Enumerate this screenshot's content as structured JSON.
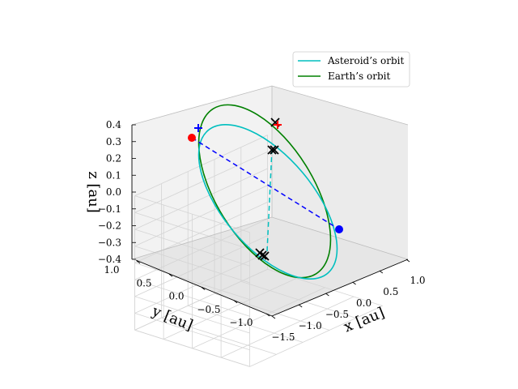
{
  "chart_data": {
    "type": "line",
    "projection": "3d",
    "xlabel": "x [au]",
    "ylabel": "y [au]",
    "zlabel": "z [au]",
    "xlim": [
      -1.5,
      1.0
    ],
    "ylim": [
      -1.0,
      1.0
    ],
    "zlim": [
      -0.4,
      0.4
    ],
    "xticks": [
      "−1.5",
      "−1.0",
      "−0.5",
      "0.0",
      "0.5",
      "1.0"
    ],
    "yticks": [
      "−1.0",
      "−0.5",
      "0.0",
      "0.5",
      "1.0"
    ],
    "zticks": [
      "−0.4",
      "−0.3",
      "−0.2",
      "−0.1",
      "0.0",
      "0.1",
      "0.2",
      "0.3",
      "0.4"
    ],
    "grid": true,
    "legend_position": "top-right",
    "series": [
      {
        "name": "Asteroid’s orbit",
        "color": "#00bfbf",
        "semi_major_axis": 1.05,
        "eccentricity": 0.1,
        "inclination_deg": 25,
        "node_deg": 180,
        "peri_deg": 0
      },
      {
        "name": "Earth’s orbit",
        "color": "#008000",
        "semi_major_axis": 1.0,
        "eccentricity": 0.0,
        "inclination_deg": 0,
        "node_deg": 0,
        "peri_deg": 0
      }
    ],
    "points": [
      {
        "label": "asteroid-position",
        "color": "#ff0000",
        "marker": "circle",
        "x": -0.95,
        "y": 0.95,
        "z": 0.4
      },
      {
        "label": "earth-position",
        "color": "#0000ff",
        "marker": "circle",
        "x": 0.75,
        "y": -0.75,
        "z": 0.0
      },
      {
        "label": "plus-marker-blue",
        "color": "#0000ff",
        "marker": "plus",
        "x": -0.92,
        "y": 0.92,
        "z": 0.44
      },
      {
        "label": "plus-marker-red",
        "color": "#ff0000",
        "marker": "plus",
        "x": -0.9,
        "y": -0.55,
        "z": 0.38
      }
    ],
    "cross_markers": [
      {
        "x": -0.9,
        "y": -0.45,
        "z": 0.38
      },
      {
        "x": -0.9,
        "y": -0.47,
        "z": 0.36
      },
      {
        "x": -0.92,
        "y": -0.45,
        "z": 0.2
      },
      {
        "x": -0.93,
        "y": -0.45,
        "z": 0.18
      },
      {
        "x": 0.0,
        "y": -0.85,
        "z": -0.35
      },
      {
        "x": 0.0,
        "y": -0.87,
        "z": -0.37
      },
      {
        "x": 0.02,
        "y": -0.89,
        "z": -0.38
      }
    ],
    "dashed_lines": [
      {
        "color": "#0000ff",
        "from": [
          -0.95,
          0.95,
          0.4
        ],
        "to": [
          0.75,
          -0.75,
          0.0
        ]
      },
      {
        "color": "#00bfbf",
        "from": [
          -0.92,
          -0.45,
          0.2
        ],
        "to": [
          0.0,
          -0.87,
          -0.37
        ]
      }
    ]
  }
}
